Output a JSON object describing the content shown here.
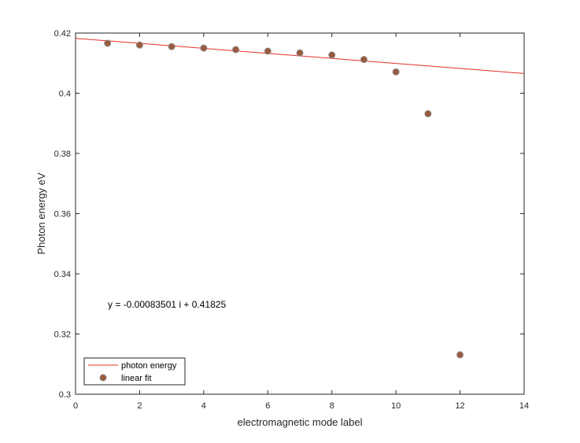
{
  "chart_data": {
    "type": "scatter",
    "title": "",
    "xlabel": "electromagnetic mode label",
    "ylabel": "Photon energy eV",
    "xlim": [
      0,
      14
    ],
    "ylim": [
      0.3,
      0.42
    ],
    "xticks": [
      0,
      2,
      4,
      6,
      8,
      10,
      12,
      14
    ],
    "yticks": [
      0.3,
      0.32,
      0.34,
      0.36,
      0.38,
      0.4,
      0.42
    ],
    "xtick_labels": [
      "0",
      "2",
      "4",
      "6",
      "8",
      "10",
      "12",
      "14"
    ],
    "ytick_labels": [
      "0.3",
      "0.32",
      "0.34",
      "0.36",
      "0.38",
      "0.4",
      "0.42"
    ],
    "grid": false,
    "series": [
      {
        "name": "photon energy",
        "kind": "line",
        "color": "#e8302a",
        "x": [
          0,
          14
        ],
        "y": [
          0.41825,
          0.406559
        ]
      },
      {
        "name": "linear fit",
        "kind": "points",
        "color": "#9c5a3c",
        "edge_color": "#8a8a8a",
        "x": [
          1,
          2,
          3,
          4,
          5,
          6,
          7,
          8,
          9,
          10,
          11,
          12
        ],
        "y": [
          0.4166,
          0.416,
          0.4155,
          0.415,
          0.4145,
          0.414,
          0.4134,
          0.4127,
          0.4112,
          0.4071,
          0.3932,
          0.3131
        ]
      }
    ],
    "annotation": {
      "text": "y = -0.00083501 i + 0.41825",
      "x": 1,
      "y": 0.329
    },
    "legend": {
      "placement": "bottom-left",
      "entries": [
        "photon energy",
        "linear fit"
      ]
    }
  }
}
